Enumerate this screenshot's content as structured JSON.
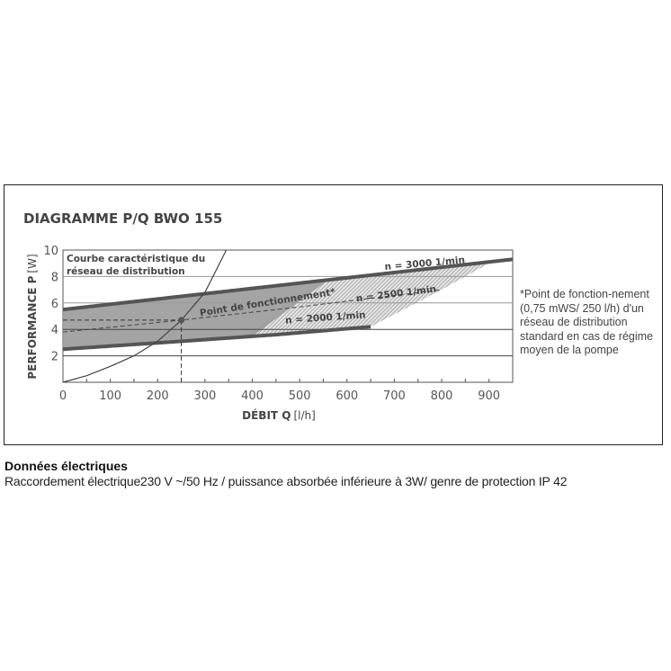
{
  "chart_data": {
    "type": "line",
    "title": "DIAGRAMME P/Q BWO 155",
    "xlabel_bold": "DÉBIT Q",
    "xlabel_unit": "[l/h]",
    "ylabel_bold": "PERFORMANCE P",
    "ylabel_unit": "[W]",
    "xlim": [
      0,
      950
    ],
    "ylim": [
      0,
      10
    ],
    "x_ticks": [
      "0",
      "100",
      "200",
      "300",
      "400",
      "500",
      "600",
      "700",
      "800",
      "900"
    ],
    "y_ticks": [
      "2",
      "4",
      "6",
      "8",
      "10"
    ],
    "grid": "horizontal",
    "series": [
      {
        "name": "n = 3000 1/min",
        "style": "thick",
        "x": [
          0,
          300,
          600,
          950
        ],
        "y": [
          5.5,
          6.7,
          7.9,
          9.3
        ]
      },
      {
        "name": "n = 2500 1/min",
        "style": "dashed",
        "x": [
          0,
          250,
          500,
          800
        ],
        "y": [
          3.8,
          4.7,
          5.7,
          7.0
        ]
      },
      {
        "name": "n = 2000 1/min",
        "style": "thick",
        "x": [
          0,
          250,
          450,
          650
        ],
        "y": [
          2.5,
          3.1,
          3.6,
          4.2
        ]
      },
      {
        "name": "Courbe caractéristique du réseau de distribution",
        "style": "thin",
        "x": [
          0,
          50,
          100,
          150,
          200,
          250,
          300,
          345
        ],
        "y": [
          0,
          0.5,
          1.2,
          2.0,
          3.1,
          4.7,
          6.8,
          10
        ]
      }
    ],
    "annotations": {
      "system_curve_label_1": "Courbe caractéristique du",
      "system_curve_label_2": "réseau de distribution",
      "operating_point_label": "Point de fonctionnement*",
      "operating_point": {
        "x": 250,
        "y": 4.7
      }
    },
    "colors": {
      "band": "#9a9a9a",
      "curve": "#555555",
      "grid": "#444444"
    }
  },
  "note": "*Point de fonction-nement (0,75 mWS/ 250 l/h) d'un réseau de distribution standard en cas de régime moyen de la pompe",
  "electrical": {
    "title": "Données électriques",
    "text": "Raccordement électrique230 V ~/50 Hz / puissance absorbée inférieure à 3W/ genre de protection IP 42"
  }
}
